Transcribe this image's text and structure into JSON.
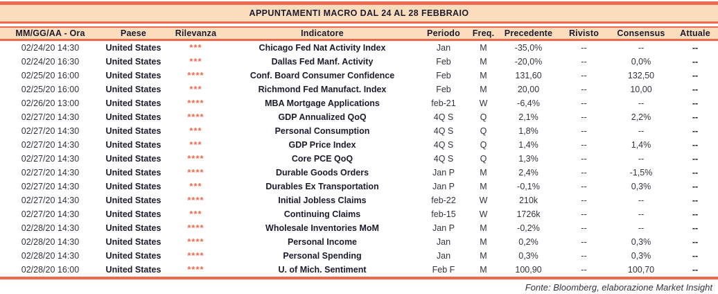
{
  "colors": {
    "accent_red": "#ED6A50",
    "band_peach": "#FBDCBD",
    "text_dark": "#1B1B2C"
  },
  "title": "APPUNTAMENTI MACRO DAL 24 AL 28 FEBBRAIO",
  "columns": [
    {
      "label": "MM/GG/AA - Ora"
    },
    {
      "label": "Paese"
    },
    {
      "label": "Rilevanza"
    },
    {
      "label": "Indicatore"
    },
    {
      "label": "Periodo"
    },
    {
      "label": "Freq."
    },
    {
      "label": "Precedente"
    },
    {
      "label": "Rivisto"
    },
    {
      "label": "Consensus"
    },
    {
      "label": "Attuale"
    }
  ],
  "rows": [
    {
      "date": "02/24/20 14:30",
      "country": "United States",
      "relevance": "***",
      "indicator": "Chicago Fed Nat Activity Index",
      "period": "Jan",
      "freq": "M",
      "previous": "-35,0%",
      "revised": "--",
      "consensus": "--",
      "actual": "--"
    },
    {
      "date": "02/24/20 16:30",
      "country": "United States",
      "relevance": "***",
      "indicator": "Dallas Fed Manf. Activity",
      "period": "Feb",
      "freq": "M",
      "previous": "-20,0%",
      "revised": "--",
      "consensus": "0,0%",
      "actual": "--"
    },
    {
      "date": "02/25/20 16:00",
      "country": "United States",
      "relevance": "****",
      "indicator": "Conf. Board Consumer Confidence",
      "period": "Feb",
      "freq": "M",
      "previous": "131,60",
      "revised": "--",
      "consensus": "132,50",
      "actual": "--"
    },
    {
      "date": "02/25/20 16:00",
      "country": "United States",
      "relevance": "***",
      "indicator": "Richmond Fed Manufact. Index",
      "period": "Feb",
      "freq": "M",
      "previous": "20,00",
      "revised": "--",
      "consensus": "10,00",
      "actual": "--"
    },
    {
      "date": "02/26/20 13:00",
      "country": "United States",
      "relevance": "****",
      "indicator": "MBA Mortgage Applications",
      "period": "feb-21",
      "freq": "W",
      "previous": "-6,4%",
      "revised": "--",
      "consensus": "--",
      "actual": "--"
    },
    {
      "date": "02/27/20 14:30",
      "country": "United States",
      "relevance": "****",
      "indicator": "GDP Annualized QoQ",
      "period": "4Q S",
      "freq": "Q",
      "previous": "2,1%",
      "revised": "--",
      "consensus": "2,2%",
      "actual": "--"
    },
    {
      "date": "02/27/20 14:30",
      "country": "United States",
      "relevance": "***",
      "indicator": "Personal Consumption",
      "period": "4Q S",
      "freq": "Q",
      "previous": "1,8%",
      "revised": "--",
      "consensus": "--",
      "actual": "--"
    },
    {
      "date": "02/27/20 14:30",
      "country": "United States",
      "relevance": "***",
      "indicator": "GDP Price Index",
      "period": "4Q S",
      "freq": "Q",
      "previous": "1,4%",
      "revised": "--",
      "consensus": "1,4%",
      "actual": "--"
    },
    {
      "date": "02/27/20 14:30",
      "country": "United States",
      "relevance": "****",
      "indicator": "Core PCE QoQ",
      "period": "4Q S",
      "freq": "Q",
      "previous": "1,3%",
      "revised": "--",
      "consensus": "--",
      "actual": "--"
    },
    {
      "date": "02/27/20 14:30",
      "country": "United States",
      "relevance": "****",
      "indicator": "Durable Goods Orders",
      "period": "Jan P",
      "freq": "M",
      "previous": "2,4%",
      "revised": "--",
      "consensus": "-1,5%",
      "actual": "--"
    },
    {
      "date": "02/27/20 14:30",
      "country": "United States",
      "relevance": "***",
      "indicator": "Durables Ex Transportation",
      "period": "Jan P",
      "freq": "M",
      "previous": "-0,1%",
      "revised": "--",
      "consensus": "0,3%",
      "actual": "--"
    },
    {
      "date": "02/27/20 14:30",
      "country": "United States",
      "relevance": "****",
      "indicator": "Initial Jobless Claims",
      "period": "feb-22",
      "freq": "W",
      "previous": "210k",
      "revised": "--",
      "consensus": "--",
      "actual": "--"
    },
    {
      "date": "02/27/20 14:30",
      "country": "United States",
      "relevance": "***",
      "indicator": "Continuing Claims",
      "period": "feb-15",
      "freq": "W",
      "previous": "1726k",
      "revised": "--",
      "consensus": "--",
      "actual": "--"
    },
    {
      "date": "02/28/20 14:30",
      "country": "United States",
      "relevance": "****",
      "indicator": "Wholesale Inventories MoM",
      "period": "Jan P",
      "freq": "M",
      "previous": "-0,2%",
      "revised": "--",
      "consensus": "--",
      "actual": "--"
    },
    {
      "date": "02/28/20 14:30",
      "country": "United States",
      "relevance": "****",
      "indicator": "Personal Income",
      "period": "Jan",
      "freq": "M",
      "previous": "0,2%",
      "revised": "--",
      "consensus": "0,3%",
      "actual": "--"
    },
    {
      "date": "02/28/20 14:30",
      "country": "United States",
      "relevance": "****",
      "indicator": "Personal Spending",
      "period": "Jan",
      "freq": "M",
      "previous": "0,3%",
      "revised": "--",
      "consensus": "0,3%",
      "actual": "--"
    },
    {
      "date": "02/28/20 16:00",
      "country": "United States",
      "relevance": "****",
      "indicator": "U. of Mich. Sentiment",
      "period": "Feb F",
      "freq": "M",
      "previous": "100,90",
      "revised": "--",
      "consensus": "100,70",
      "actual": "--"
    }
  ],
  "footer": "Fonte: Bloomberg, elaborazione Market Insight"
}
